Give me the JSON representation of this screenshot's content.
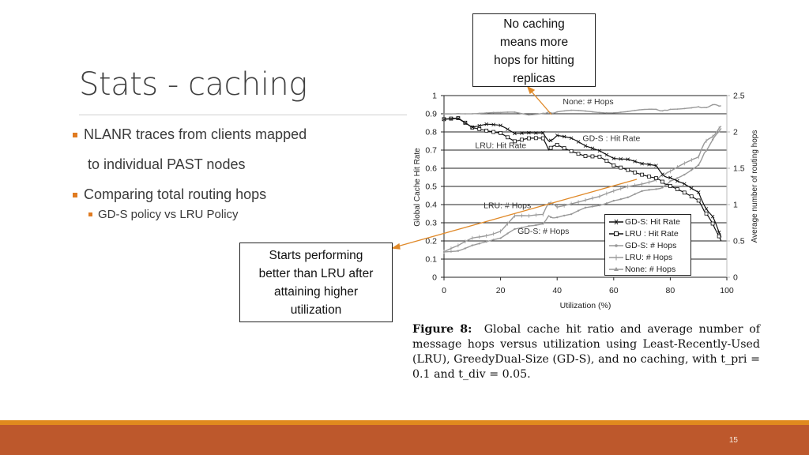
{
  "slide": {
    "title": "Stats - caching",
    "bullets": [
      {
        "text": "NLANR traces from clients mapped",
        "level": 1
      },
      {
        "text": "to individual PAST nodes",
        "level": 1,
        "continuation": true
      },
      {
        "text": "Comparing total routing hops",
        "level": 1
      },
      {
        "text": "GD-S policy vs LRU Policy",
        "level": 2
      }
    ],
    "page_number": "15",
    "accent_color": "#e07b21",
    "footer_color": "#bd582c"
  },
  "callouts": {
    "top": {
      "lines": [
        "No caching",
        "means more",
        "hops for hitting",
        "replicas"
      ]
    },
    "left": {
      "lines": [
        "Starts performing",
        "better than LRU after",
        "attaining higher",
        "utilization"
      ]
    }
  },
  "caption": {
    "label": "Figure 8:",
    "text": "Global cache hit ratio and average number of message hops versus utilization using Least-Recently-Used (LRU), GreedyDual-Size (GD-S), and no caching, with t_pri = 0.1 and t_div = 0.05."
  },
  "chart_data": {
    "type": "line",
    "title": "",
    "xlabel": "Utilization (%)",
    "ylabel": "Global Cache Hit Rate",
    "ylabel_right": "Average number of routing hops",
    "xlim": [
      0,
      100
    ],
    "ylim": [
      0,
      1
    ],
    "ylim_right": [
      0,
      2.5
    ],
    "x_ticks": [
      "0",
      "20",
      "40",
      "60",
      "80",
      "100"
    ],
    "y_ticks": [
      "0",
      "0.1",
      "0.2",
      "0.3",
      "0.4",
      "0.5",
      "0.6",
      "0.7",
      "0.8",
      "0.9",
      "1"
    ],
    "y_ticks_right": [
      "0",
      "0.5",
      "1",
      "1.5",
      "2",
      "2.5"
    ],
    "grid": true,
    "legend_position": "lower right",
    "x": [
      0,
      5,
      10,
      15,
      20,
      25,
      30,
      35,
      37,
      40,
      45,
      50,
      55,
      60,
      65,
      70,
      75,
      78,
      80,
      85,
      90,
      92,
      95,
      98
    ],
    "series": [
      {
        "name": "GD-S: Hit Rate",
        "axis": "left",
        "marker": "x",
        "color": "#111111",
        "values": [
          0.87,
          0.88,
          0.83,
          0.84,
          0.83,
          0.79,
          0.8,
          0.8,
          0.75,
          0.78,
          0.76,
          0.72,
          0.7,
          0.66,
          0.65,
          0.62,
          0.61,
          0.56,
          0.55,
          0.52,
          0.47,
          0.4,
          0.33,
          0.22
        ]
      },
      {
        "name": "LRU : Hit Rate",
        "axis": "left",
        "marker": "square",
        "color": "#111111",
        "values": [
          0.87,
          0.87,
          0.82,
          0.81,
          0.8,
          0.75,
          0.76,
          0.76,
          0.7,
          0.73,
          0.7,
          0.67,
          0.66,
          0.61,
          0.59,
          0.57,
          0.55,
          0.51,
          0.5,
          0.46,
          0.42,
          0.36,
          0.3,
          0.2
        ]
      },
      {
        "name": "GD-S: # Hops",
        "axis": "right",
        "marker": "dot",
        "color": "#9a9a9a",
        "values": [
          0.35,
          0.38,
          0.45,
          0.48,
          0.52,
          0.66,
          0.72,
          0.75,
          0.85,
          0.82,
          0.85,
          0.95,
          1.0,
          1.07,
          1.1,
          1.17,
          1.2,
          1.27,
          1.33,
          1.43,
          1.55,
          1.72,
          1.88,
          2.05
        ]
      },
      {
        "name": "LRU: # Hops",
        "axis": "right",
        "marker": "plus",
        "color": "#9a9a9a",
        "values": [
          0.35,
          0.42,
          0.53,
          0.58,
          0.65,
          0.85,
          0.83,
          0.85,
          1.02,
          0.97,
          1.03,
          1.07,
          1.1,
          1.17,
          1.25,
          1.3,
          1.35,
          1.4,
          1.45,
          1.55,
          1.65,
          1.83,
          1.95,
          2.08
        ]
      },
      {
        "name": "None: # Hops",
        "axis": "right",
        "marker": "triangle",
        "color": "#9a9a9a",
        "values": [
          2.25,
          2.27,
          2.26,
          2.25,
          2.25,
          2.27,
          2.25,
          2.27,
          2.28,
          2.27,
          2.28,
          2.28,
          2.28,
          2.28,
          2.28,
          2.29,
          2.3,
          2.31,
          2.32,
          2.34,
          2.35,
          2.35,
          2.36,
          2.36
        ]
      }
    ],
    "annotations": [
      {
        "text": "None: # Hops",
        "x": 42,
        "y_right": 2.38
      },
      {
        "text": "GD-S : Hit Rate",
        "x": 49,
        "y": 0.75
      },
      {
        "text": "LRU: Hit Rate",
        "x": 11,
        "y": 0.71
      },
      {
        "text": "LRU: # Hops",
        "x": 14,
        "y": 0.38
      },
      {
        "text": "GD-S: # Hops",
        "x": 26,
        "y": 0.24
      }
    ]
  }
}
